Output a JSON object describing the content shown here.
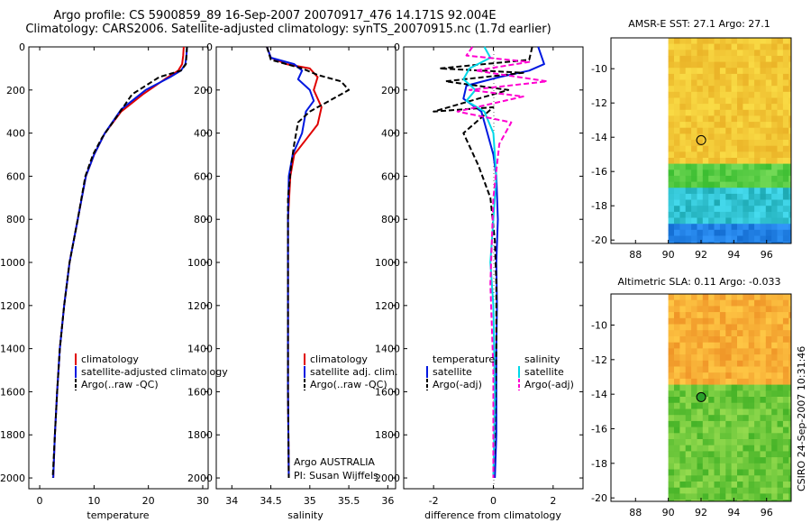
{
  "figure": {
    "title_line1": "Argo profile: CS 5900859_89 16-Sep-2007 20070917_476 14.171S 92.004E",
    "title_line2": "Climatology: CARS2006. Satellite-adjusted climatology: synTS_20070915.nc (1.7d earlier)",
    "credit": "CSIRO 24-Sep-2007 10:31:46",
    "float_owner": "Argo AUSTRALIA",
    "float_pi": "PI: Susan Wijffels"
  },
  "colors": {
    "climatology": "#e00000",
    "satellite": "#0018e0",
    "argo": "#000000",
    "sat_salinity": "#00d8e8",
    "argo_adj_salinity": "#ff00d0"
  },
  "chart_data": [
    {
      "id": "temperature",
      "type": "line",
      "xlabel": "temperature",
      "ylabel": "",
      "xlim": [
        -2,
        31
      ],
      "ylim": [
        2050,
        0
      ],
      "xticks": [
        0,
        10,
        20,
        30
      ],
      "yticks": [
        0,
        200,
        400,
        600,
        800,
        1000,
        1200,
        1400,
        1600,
        1800,
        2000
      ],
      "legend": [
        "climatology",
        "satellite-adjusted climatology",
        "Argo(..raw -QC)"
      ],
      "series": [
        {
          "name": "climatology",
          "color_key": "climatology",
          "dash": false,
          "x": [
            26.5,
            26.4,
            26.2,
            25.5,
            23.0,
            19.0,
            15.0,
            12.0,
            10.0,
            8.5,
            7.0,
            5.5,
            4.5,
            3.7,
            3.2,
            2.8,
            2.5
          ],
          "y": [
            0,
            40,
            80,
            110,
            150,
            220,
            300,
            400,
            500,
            600,
            800,
            1000,
            1200,
            1400,
            1600,
            1800,
            2000
          ]
        },
        {
          "name": "satellite-adjusted climatology",
          "color_key": "satellite",
          "dash": false,
          "x": [
            27.1,
            27.0,
            26.8,
            26.0,
            24.0,
            19.5,
            15.0,
            12.0,
            10.0,
            8.5,
            7.0,
            5.5,
            4.5,
            3.7,
            3.2,
            2.8,
            2.5
          ],
          "y": [
            0,
            40,
            80,
            110,
            140,
            200,
            290,
            400,
            500,
            600,
            800,
            1000,
            1200,
            1400,
            1600,
            1800,
            2000
          ]
        },
        {
          "name": "Argo(..raw -QC)",
          "color_key": "argo",
          "dash": true,
          "x": [
            27.1,
            27.0,
            26.9,
            26.0,
            22.0,
            17.0,
            14.0,
            11.5,
            9.8,
            8.4,
            7.0,
            5.5,
            4.5,
            3.7,
            3.2,
            2.8,
            2.4
          ],
          "y": [
            0,
            40,
            80,
            110,
            140,
            220,
            330,
            420,
            500,
            600,
            800,
            1000,
            1200,
            1400,
            1600,
            1800,
            2000
          ]
        }
      ]
    },
    {
      "id": "salinity",
      "type": "line",
      "xlabel": "salinity",
      "ylabel": "",
      "xlim": [
        33.8,
        36.1
      ],
      "ylim": [
        2050,
        0
      ],
      "xticks": [
        34,
        34.5,
        35,
        35.5,
        36
      ],
      "yticks": [
        0,
        200,
        400,
        600,
        800,
        1000,
        1200,
        1400,
        1600,
        1800,
        2000
      ],
      "legend": [
        "climatology",
        "satellite adj. clim.",
        "Argo(..raw -QC)"
      ],
      "series": [
        {
          "name": "climatology",
          "color_key": "climatology",
          "dash": false,
          "x": [
            34.45,
            34.5,
            34.7,
            35.0,
            35.1,
            35.05,
            35.15,
            35.1,
            34.95,
            34.8,
            34.75,
            34.72,
            34.72,
            34.72,
            34.73
          ],
          "y": [
            0,
            50,
            80,
            100,
            140,
            200,
            280,
            360,
            430,
            500,
            600,
            800,
            1200,
            1600,
            2000
          ]
        },
        {
          "name": "satellite adj. clim.",
          "color_key": "satellite",
          "dash": false,
          "x": [
            34.45,
            34.5,
            34.8,
            34.9,
            34.85,
            35.0,
            35.05,
            34.95,
            34.9,
            34.78,
            34.73,
            34.72,
            34.72,
            34.72,
            34.73
          ],
          "y": [
            0,
            50,
            80,
            110,
            150,
            200,
            250,
            300,
            400,
            500,
            600,
            800,
            1200,
            1600,
            2000
          ]
        },
        {
          "name": "Argo(..raw -QC)",
          "color_key": "argo",
          "dash": true,
          "x": [
            34.45,
            34.5,
            34.9,
            35.1,
            35.4,
            35.5,
            35.3,
            35.0,
            34.85,
            34.8,
            34.76,
            34.72,
            34.72,
            34.72,
            34.73
          ],
          "y": [
            0,
            60,
            100,
            130,
            160,
            200,
            240,
            300,
            350,
            450,
            550,
            700,
            1200,
            1600,
            2000
          ]
        }
      ]
    },
    {
      "id": "difference",
      "type": "line",
      "xlabel": "difference from climatology",
      "ylabel": "",
      "xlim": [
        -3,
        3
      ],
      "ylim": [
        2050,
        0
      ],
      "xticks": [
        -2,
        0,
        2
      ],
      "yticks": [
        0,
        200,
        400,
        600,
        800,
        1000,
        1200,
        1400,
        1600,
        1800,
        2000
      ],
      "legend_titles": [
        "temperature",
        "salinity"
      ],
      "legend": [
        "satellite",
        "Argo(-adj)",
        "satellite",
        "Argo(-adj)"
      ],
      "series": [
        {
          "name": "temperature satellite",
          "color_key": "satellite",
          "dash": false,
          "x": [
            1.5,
            1.6,
            1.7,
            1.2,
            0.2,
            -0.9,
            -1.0,
            -0.4,
            -0.2,
            0.0,
            0.1,
            0.15,
            0.1,
            0.12,
            0.1,
            0.1,
            0.05
          ],
          "y": [
            0,
            40,
            80,
            110,
            140,
            180,
            240,
            300,
            400,
            500,
            600,
            800,
            1000,
            1200,
            1400,
            1800,
            2000
          ]
        },
        {
          "name": "temperature Argo(-adj)",
          "color_key": "argo",
          "dash": true,
          "x": [
            1.3,
            1.2,
            -1.8,
            1.0,
            -1.6,
            0.5,
            -2.0,
            0.0,
            -1.0,
            -0.5,
            -0.1,
            0.05,
            0.1,
            0.1,
            0.05,
            0.0
          ],
          "y": [
            0,
            60,
            100,
            120,
            160,
            200,
            300,
            280,
            400,
            550,
            700,
            900,
            1100,
            1400,
            1800,
            2000
          ]
        },
        {
          "name": "salinity satellite",
          "color_key": "sat_salinity",
          "dash": false,
          "x": [
            -0.3,
            -0.1,
            -0.8,
            -1.0,
            -0.6,
            -0.9,
            -0.3,
            0.0,
            0.1,
            0.0,
            -0.1,
            0.0,
            0.05,
            0.0
          ],
          "y": [
            0,
            50,
            100,
            150,
            200,
            250,
            300,
            400,
            600,
            800,
            1000,
            1200,
            1600,
            2000
          ]
        },
        {
          "name": "salinity Argo(-adj)",
          "color_key": "argo_adj_salinity",
          "dash": true,
          "x": [
            -0.7,
            -0.9,
            1.2,
            -0.6,
            1.8,
            -0.8,
            1.0,
            -1.2,
            0.6,
            0.2,
            0.0,
            -0.1,
            0.0,
            0.0
          ],
          "y": [
            0,
            40,
            70,
            110,
            160,
            200,
            230,
            300,
            350,
            450,
            700,
            1100,
            1500,
            2000
          ]
        }
      ]
    },
    {
      "id": "sst_map",
      "type": "heatmap",
      "title": "AMSR-E SST: 27.1 Argo: 27.1",
      "xlim": [
        86.5,
        97.5
      ],
      "ylim": [
        -20.2,
        -8.2
      ],
      "xticks": [
        88,
        90,
        92,
        94,
        96
      ],
      "yticks": [
        -10,
        -12,
        -14,
        -16,
        -18,
        -20
      ],
      "data_xlim": [
        90,
        97.5
      ],
      "marker": {
        "lon": 92.004,
        "lat": -14.171
      },
      "field_description_values": "warm north (27+), cooler south"
    },
    {
      "id": "sla_map",
      "type": "heatmap",
      "title": "Altimetric SLA: 0.11 Argo: -0.033",
      "xlim": [
        86.5,
        97.5
      ],
      "ylim": [
        -20.2,
        -8.2
      ],
      "xticks": [
        88,
        90,
        92,
        94,
        96
      ],
      "yticks": [
        -10,
        -12,
        -14,
        -16,
        -18,
        -20
      ],
      "data_xlim": [
        90,
        97.5
      ],
      "marker": {
        "lon": 92.004,
        "lat": -14.171
      }
    }
  ]
}
